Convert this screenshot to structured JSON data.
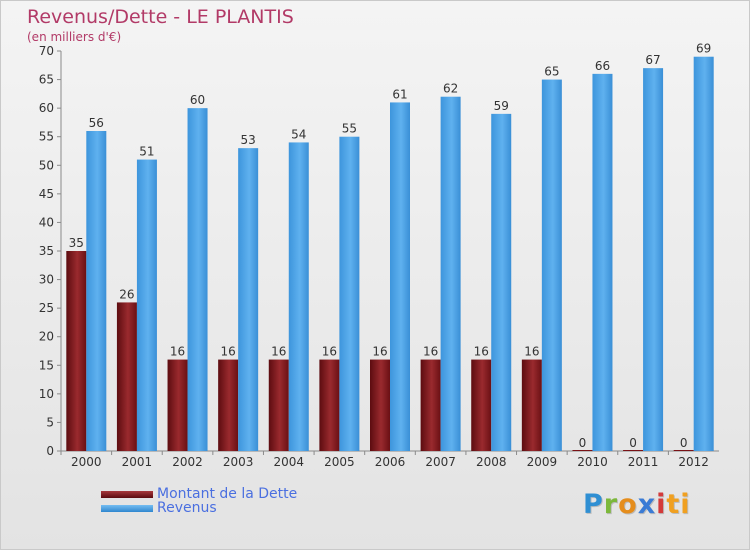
{
  "header": {
    "title": "Revenus/Dette - LE PLANTIS",
    "subtitle": "(en milliers d'€)"
  },
  "logo": {
    "letters": [
      "P",
      "r",
      "o",
      "x",
      "i",
      "ti"
    ]
  },
  "colors": {
    "debt": "#7a1216",
    "revenue": "#4aa3e8",
    "title": "#b23a67",
    "legend_text": "#4a6fe0"
  },
  "chart_data": {
    "type": "bar",
    "title": "Revenus/Dette - LE PLANTIS",
    "ylabel": "(en milliers d'€)",
    "categories": [
      "2000",
      "2001",
      "2002",
      "2003",
      "2004",
      "2005",
      "2006",
      "2007",
      "2008",
      "2009",
      "2010",
      "2011",
      "2012"
    ],
    "series": [
      {
        "name": "Montant de la Dette",
        "values": [
          35,
          26,
          16,
          16,
          16,
          16,
          16,
          16,
          16,
          16,
          0,
          0,
          0
        ]
      },
      {
        "name": "Revenus",
        "values": [
          56,
          51,
          60,
          53,
          54,
          55,
          61,
          62,
          59,
          65,
          66,
          67,
          69
        ]
      }
    ],
    "ylim": [
      0,
      70
    ],
    "yticks": [
      0,
      5,
      10,
      15,
      20,
      25,
      30,
      35,
      40,
      45,
      50,
      55,
      60,
      65,
      70
    ],
    "grid": false,
    "legend_position": "bottom-left"
  }
}
